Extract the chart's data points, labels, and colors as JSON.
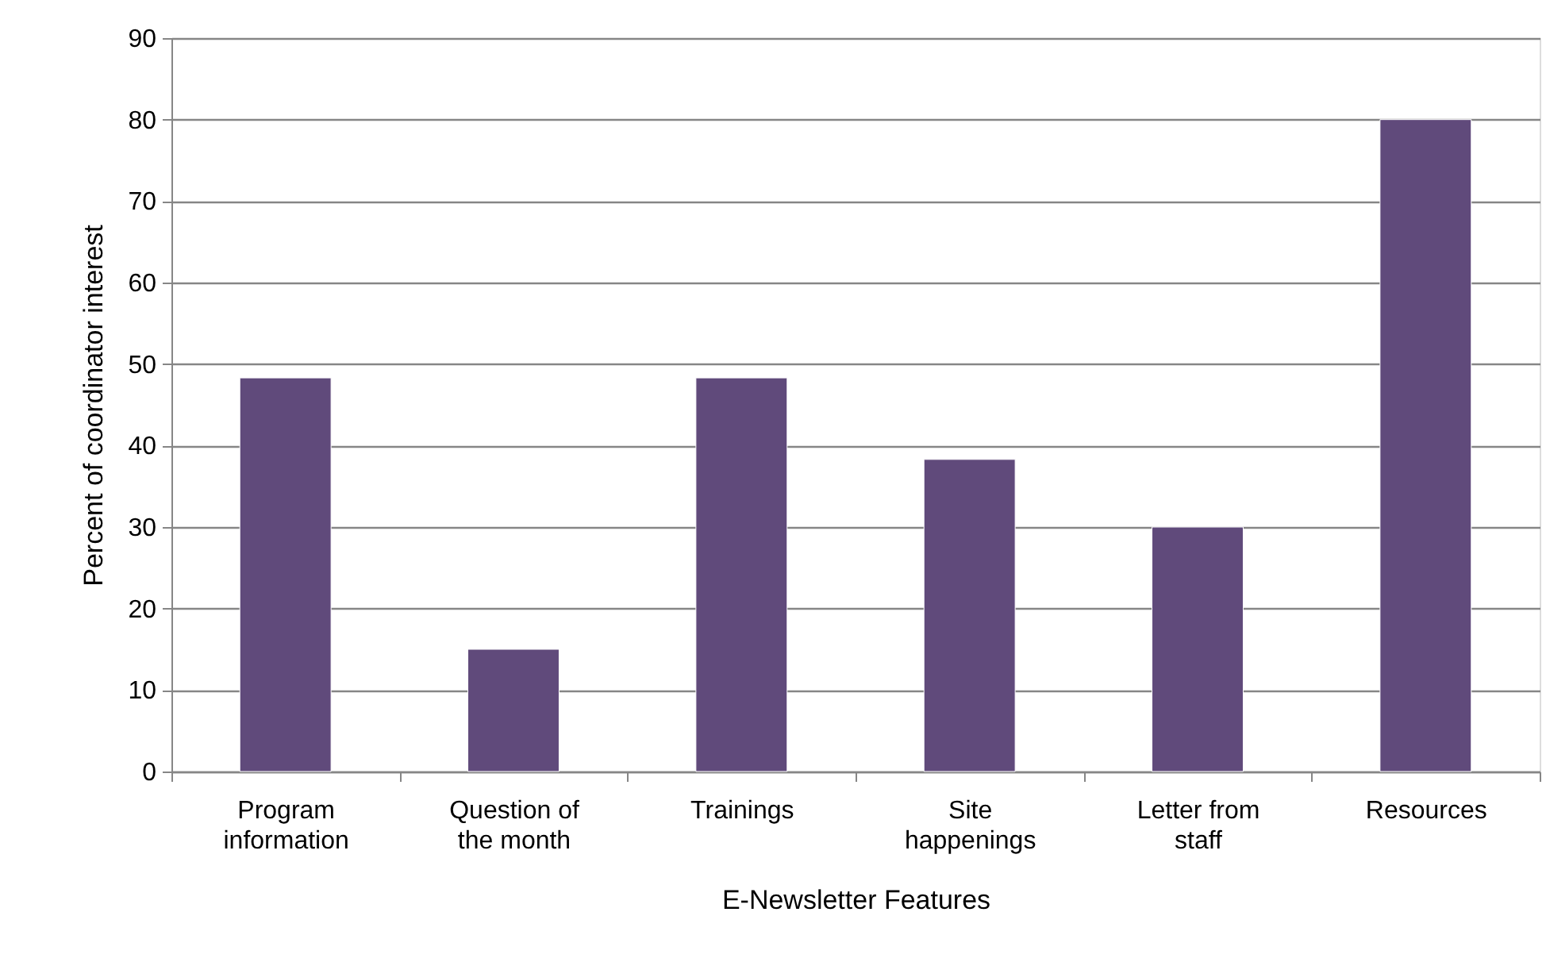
{
  "chart_data": {
    "type": "bar",
    "xlabel": "E-Newsletter Features",
    "ylabel": "Percent of coordinator interest",
    "categories": [
      "Program information",
      "Question of the month",
      "Trainings",
      "Site happenings",
      "Letter from staff",
      "Resources"
    ],
    "values": [
      48.3,
      15,
      48.3,
      38.3,
      30,
      80
    ],
    "color": "#604a7b",
    "ylim": [
      0,
      90
    ],
    "yticks": [
      0,
      10,
      20,
      30,
      40,
      50,
      60,
      70,
      80,
      90
    ],
    "grid": "y"
  }
}
